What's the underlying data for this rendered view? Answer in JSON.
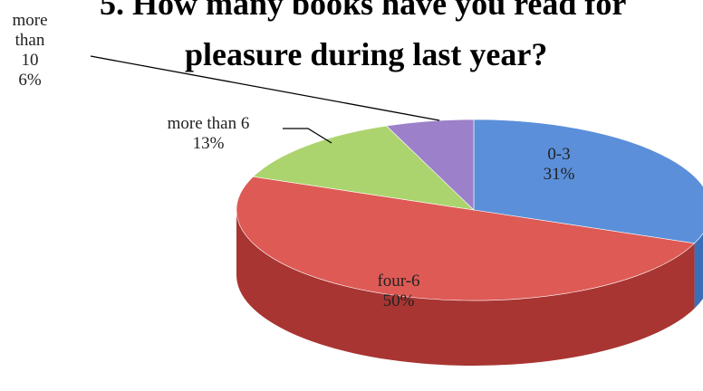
{
  "chart_data": {
    "type": "pie",
    "title": [
      "5. How many books have you read for",
      "pleasure during last year?"
    ],
    "categories": [
      "0-3",
      "four-6",
      "more than 6",
      "more than 10"
    ],
    "values": [
      31,
      50,
      13,
      6
    ],
    "value_labels": [
      "31%",
      "50%",
      "13%",
      "6%"
    ],
    "colors": [
      "#5b8fd9",
      "#de5a55",
      "#acd46e",
      "#9c80c9"
    ],
    "side_colors": [
      "#3a6fb8",
      "#a83532",
      "#7ea445",
      "#6f559a"
    ]
  }
}
